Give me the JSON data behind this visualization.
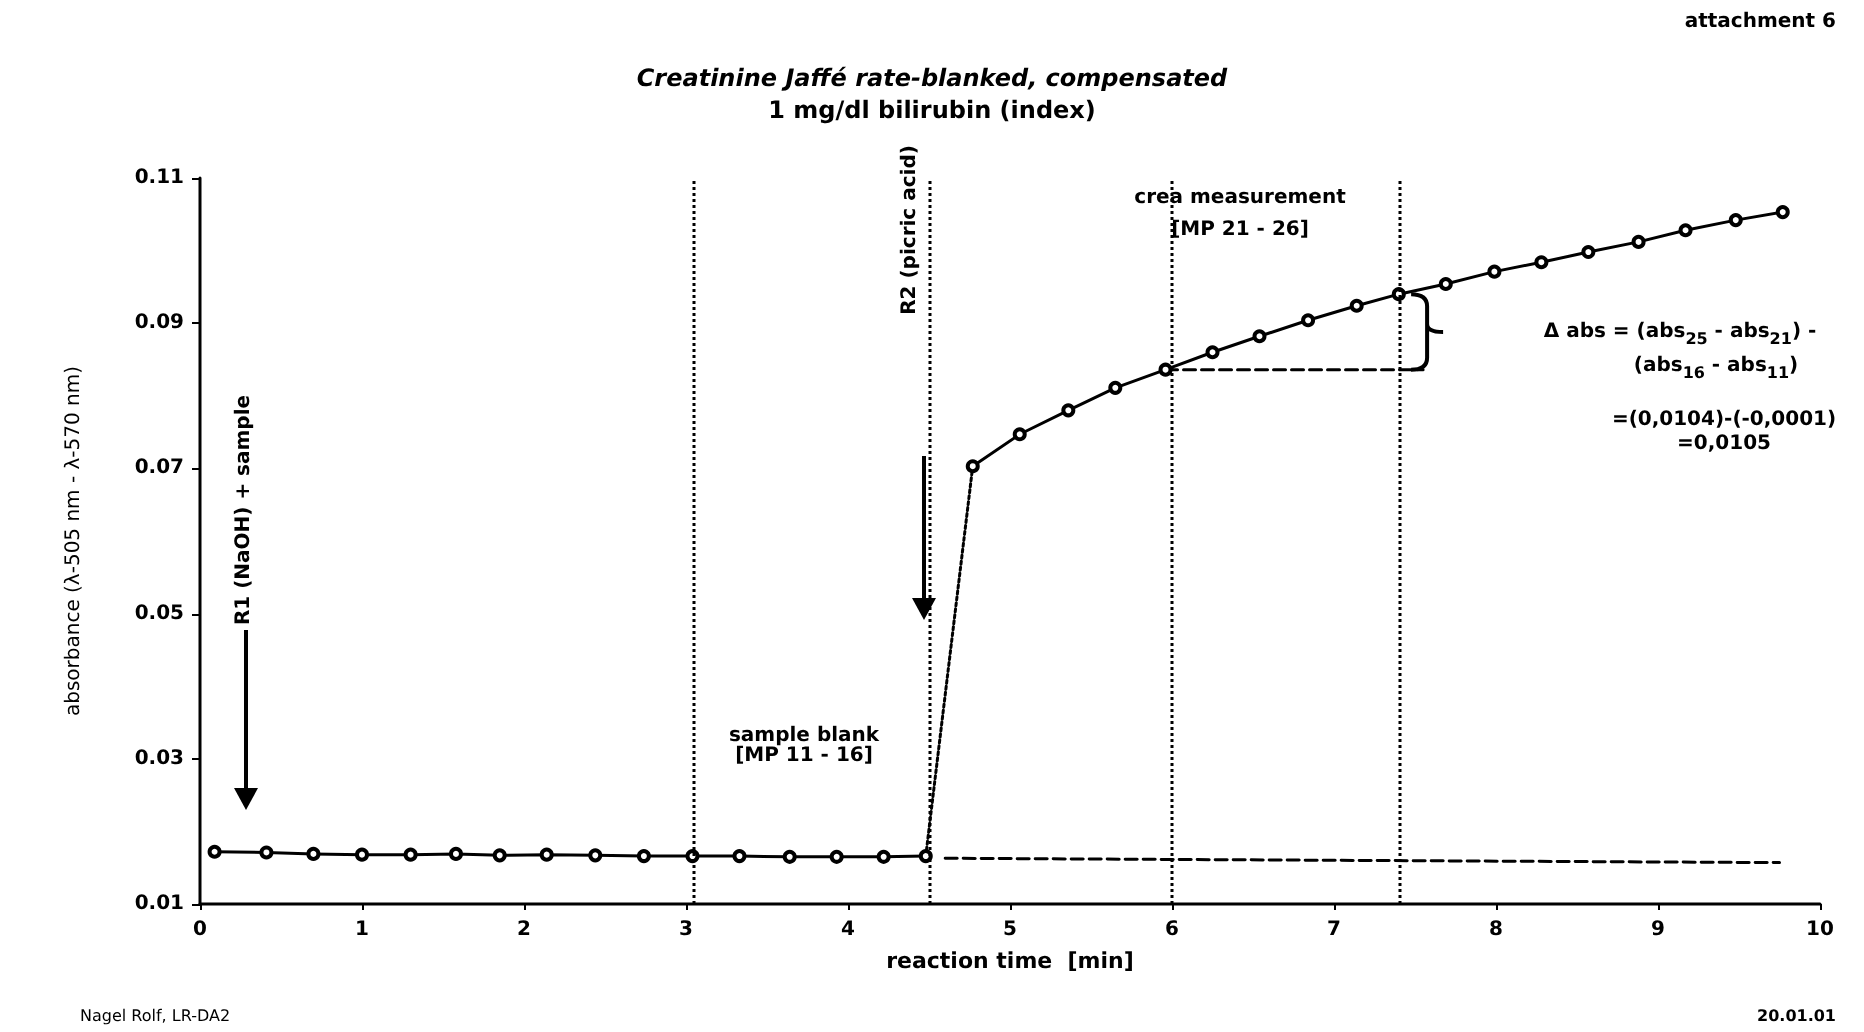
{
  "chart_data": {
    "type": "line",
    "title": "Creatinine Jaffé rate-blanked, compensated",
    "subtitle": "1 mg/dl bilirubin (index)",
    "xlabel": "reaction time  [min]",
    "ylabel": "absorbance (λ-505 nm - λ-570 nm)",
    "xlim": [
      0,
      10
    ],
    "xticks": [
      0,
      1,
      2,
      3,
      4,
      5,
      6,
      7,
      8,
      9,
      10
    ],
    "ylim": [
      0.01,
      0.11
    ],
    "yticks": [
      0.01,
      0.03,
      0.05,
      0.07,
      0.09,
      0.11
    ],
    "grid": false,
    "marker": "circle",
    "line_style": "solid",
    "series": [
      {
        "color": "#000000",
        "x": [
          0.09,
          0.41,
          0.7,
          1.0,
          1.3,
          1.58,
          1.85,
          2.14,
          2.44,
          2.74,
          3.04,
          3.33,
          3.64,
          3.93,
          4.22,
          4.48
        ],
        "values": [
          0.0172,
          0.0171,
          0.0169,
          0.0168,
          0.0168,
          0.0169,
          0.0167,
          0.0168,
          0.0167,
          0.0166,
          0.0166,
          0.0166,
          0.0165,
          0.0165,
          0.0165,
          0.0166
        ]
      },
      {
        "color": "#000000",
        "x": [
          4.77,
          5.06,
          5.36,
          5.65,
          5.96,
          6.25,
          6.54,
          6.84,
          7.14,
          7.4,
          7.69,
          7.99,
          8.28,
          8.57,
          8.88,
          9.17,
          9.48,
          9.77
        ],
        "values": [
          0.0703,
          0.0747,
          0.078,
          0.0811,
          0.0836,
          0.086,
          0.0882,
          0.0904,
          0.0924,
          0.094,
          0.0954,
          0.0971,
          0.0984,
          0.0998,
          0.1012,
          0.1028,
          0.1042,
          0.1053
        ]
      },
      {
        "color": "#000000",
        "marker": "none",
        "line_style": "dotted",
        "x": [
          4.48,
          4.77
        ],
        "values": [
          0.0166,
          0.0703
        ]
      },
      {
        "color": "#000000",
        "marker": "none",
        "line_style": "dashed",
        "x": [
          4.6,
          9.75
        ],
        "values": [
          0.0163,
          0.0157
        ]
      },
      {
        "color": "#000000",
        "marker": "none",
        "line_style": "dashed",
        "x": [
          5.96,
          7.55
        ],
        "values": [
          0.0836,
          0.0836
        ]
      }
    ],
    "ref_lines": [
      {
        "axis": "x",
        "value": 3.05,
        "color": "#000000",
        "line_style": "dotted"
      },
      {
        "axis": "x",
        "value": 4.5,
        "color": "#000000",
        "line_style": "dotted"
      },
      {
        "axis": "x",
        "value": 6.0,
        "color": "#000000",
        "line_style": "dotted"
      },
      {
        "axis": "x",
        "value": 7.4,
        "color": "#000000",
        "line_style": "dotted"
      }
    ],
    "annotations": [
      "R1 (NaOH) + sample",
      "R2 (picric acid)",
      "sample blank",
      "[MP 11 - 16]",
      "crea measurement",
      "[MP 21 - 26]",
      "Δ abs = (abs$_{25}$ - abs$_{21}$) -",
      "(abs$_{16}$ - abs$_{11}$)",
      "=(0,0104)-(-0,0001)",
      "=0,0105",
      "attachment 6",
      "Nagel Rolf, LR-DA2",
      "20.01.01"
    ]
  }
}
